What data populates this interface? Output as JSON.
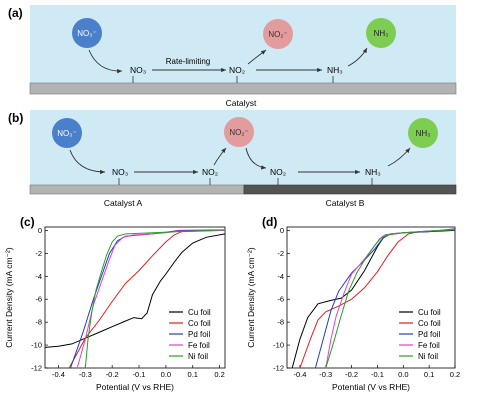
{
  "panel_a": {
    "label": "(a)",
    "nodes": {
      "nitrate": "NO₃⁻",
      "nitrite": "NO₂⁻",
      "ammonia": "NH₃"
    },
    "intermediates": {
      "no3": "NO₃",
      "no2": "NO₂",
      "nh3": "NH₃"
    },
    "step_label": "Rate-limiting",
    "catalyst_label": "Catalyst"
  },
  "panel_b": {
    "label": "(b)",
    "nodes": {
      "nitrate": "NO₃⁻",
      "nitrite": "NO₂⁻",
      "ammonia": "NH₃"
    },
    "intermediates": {
      "no3": "NO₃",
      "no2_a": "NO₂",
      "no2_b": "NO₂",
      "nh3": "NH₃"
    },
    "catalyst_a_label": "Catalyst A",
    "catalyst_b_label": "Catalyst B"
  },
  "colors": {
    "sky": "#cfe9f5",
    "nitrate": "#4a7fc9",
    "nitrite": "#e29c9e",
    "ammonia": "#7ccd52",
    "catalyst": "#b3b3b3",
    "catalyst_b": "#545454"
  },
  "chart_data": [
    {
      "type": "line",
      "panel_label": "(c)",
      "xlabel": "Potential (V vs RHE)",
      "ylabel": "Current Density (mA cm⁻²)",
      "xlim": [
        -0.45,
        0.22
      ],
      "ylim": [
        -12,
        0.3
      ],
      "xticks": [
        -0.4,
        -0.3,
        -0.2,
        -0.1,
        0.0,
        0.1,
        0.2
      ],
      "xtick_labels": [
        "-0.4",
        "-0.3",
        "-0.2",
        "-0.1",
        "0.0",
        "0.1",
        "0.2"
      ],
      "yticks": [
        0,
        -2,
        -4,
        -6,
        -8,
        -10,
        -12
      ],
      "ytick_labels": [
        "0",
        "-2",
        "-4",
        "-6",
        "-8",
        "-10",
        "-12"
      ],
      "legend_position": "bottom-right",
      "series": [
        {
          "name": "Cu foil",
          "color": "#000000",
          "points": [
            [
              -0.45,
              -10.2
            ],
            [
              -0.4,
              -10.1
            ],
            [
              -0.35,
              -9.9
            ],
            [
              -0.3,
              -9.4
            ],
            [
              -0.25,
              -8.9
            ],
            [
              -0.2,
              -8.4
            ],
            [
              -0.15,
              -7.9
            ],
            [
              -0.12,
              -7.6
            ],
            [
              -0.09,
              -7.7
            ],
            [
              -0.07,
              -7.2
            ],
            [
              -0.05,
              -5.6
            ],
            [
              -0.02,
              -4.4
            ],
            [
              0.0,
              -3.8
            ],
            [
              0.03,
              -2.8
            ],
            [
              0.06,
              -1.9
            ],
            [
              0.1,
              -1.1
            ],
            [
              0.15,
              -0.6
            ],
            [
              0.22,
              -0.3
            ]
          ]
        },
        {
          "name": "Co foil",
          "color": "#e02020",
          "points": [
            [
              -0.36,
              -12
            ],
            [
              -0.3,
              -9.4
            ],
            [
              -0.25,
              -7.9
            ],
            [
              -0.2,
              -6.2
            ],
            [
              -0.15,
              -4.6
            ],
            [
              -0.1,
              -3.5
            ],
            [
              -0.05,
              -2.2
            ],
            [
              0.0,
              -1.0
            ],
            [
              0.03,
              -0.4
            ],
            [
              0.06,
              -0.1
            ],
            [
              0.22,
              0.0
            ]
          ]
        },
        {
          "name": "Pd foil",
          "color": "#1f3fbf",
          "points": [
            [
              -0.355,
              -12
            ],
            [
              -0.31,
              -9.0
            ],
            [
              -0.27,
              -6.0
            ],
            [
              -0.24,
              -4.0
            ],
            [
              -0.21,
              -2.0
            ],
            [
              -0.18,
              -0.9
            ],
            [
              -0.15,
              -0.5
            ],
            [
              -0.1,
              -0.4
            ],
            [
              -0.05,
              -0.3
            ],
            [
              0.0,
              -0.15
            ],
            [
              0.05,
              0.0
            ],
            [
              0.22,
              0.05
            ]
          ]
        },
        {
          "name": "Fe foil",
          "color": "#e040d0",
          "points": [
            [
              -0.33,
              -12
            ],
            [
              -0.3,
              -9.5
            ],
            [
              -0.27,
              -6.5
            ],
            [
              -0.24,
              -4.5
            ],
            [
              -0.21,
              -2.5
            ],
            [
              -0.19,
              -1.3
            ],
            [
              -0.16,
              -0.6
            ],
            [
              -0.12,
              -0.4
            ],
            [
              -0.05,
              -0.3
            ],
            [
              0.0,
              -0.2
            ],
            [
              0.05,
              -0.05
            ],
            [
              0.22,
              0.0
            ]
          ]
        },
        {
          "name": "Ni foil",
          "color": "#28a028",
          "points": [
            [
              -0.3,
              -12
            ],
            [
              -0.29,
              -9.5
            ],
            [
              -0.275,
              -7.0
            ],
            [
              -0.26,
              -5.2
            ],
            [
              -0.24,
              -3.6
            ],
            [
              -0.22,
              -2.1
            ],
            [
              -0.2,
              -1.0
            ],
            [
              -0.18,
              -0.5
            ],
            [
              -0.15,
              -0.3
            ],
            [
              -0.05,
              -0.2
            ],
            [
              0.05,
              -0.1
            ],
            [
              0.22,
              0.05
            ]
          ]
        }
      ]
    },
    {
      "type": "line",
      "panel_label": "(d)",
      "xlabel": "Potential (V vs RHE)",
      "ylabel": "Current Density (mA cm⁻²)",
      "xlim": [
        -0.45,
        0.2
      ],
      "ylim": [
        -12,
        0.3
      ],
      "xticks": [
        -0.4,
        -0.3,
        -0.2,
        -0.1,
        0.0,
        0.1,
        0.2
      ],
      "xtick_labels": [
        "-0.4",
        "-0.3",
        "-0.2",
        "-0.1",
        "0.0",
        "0.1",
        "0.2"
      ],
      "yticks": [
        0,
        -2,
        -4,
        -6,
        -8,
        -10,
        -12
      ],
      "ytick_labels": [
        "0",
        "-2",
        "-4",
        "-6",
        "-8",
        "-10",
        "-12"
      ],
      "legend_position": "bottom-right",
      "series": [
        {
          "name": "Cu foil",
          "color": "#000000",
          "points": [
            [
              -0.43,
              -12
            ],
            [
              -0.4,
              -9.5
            ],
            [
              -0.37,
              -7.6
            ],
            [
              -0.33,
              -6.4
            ],
            [
              -0.28,
              -6.1
            ],
            [
              -0.24,
              -5.9
            ],
            [
              -0.2,
              -5.2
            ],
            [
              -0.15,
              -3.5
            ],
            [
              -0.1,
              -1.4
            ],
            [
              -0.07,
              -0.4
            ],
            [
              0.0,
              -0.2
            ],
            [
              0.1,
              -0.1
            ],
            [
              0.2,
              0.0
            ]
          ]
        },
        {
          "name": "Co foil",
          "color": "#e02020",
          "points": [
            [
              -0.4,
              -12
            ],
            [
              -0.36,
              -9.5
            ],
            [
              -0.33,
              -7.8
            ],
            [
              -0.3,
              -7.1
            ],
            [
              -0.25,
              -6.6
            ],
            [
              -0.2,
              -6.0
            ],
            [
              -0.15,
              -5.0
            ],
            [
              -0.1,
              -3.6
            ],
            [
              -0.06,
              -2.2
            ],
            [
              -0.02,
              -1.0
            ],
            [
              0.02,
              -0.3
            ],
            [
              0.06,
              -0.1
            ],
            [
              0.2,
              0.05
            ]
          ]
        },
        {
          "name": "Pd foil",
          "color": "#1f3fbf",
          "points": [
            [
              -0.34,
              -12
            ],
            [
              -0.31,
              -9.5
            ],
            [
              -0.28,
              -7.0
            ],
            [
              -0.25,
              -5.3
            ],
            [
              -0.2,
              -3.7
            ],
            [
              -0.15,
              -2.6
            ],
            [
              -0.11,
              -1.6
            ],
            [
              -0.08,
              -0.7
            ],
            [
              -0.05,
              -0.3
            ],
            [
              0.0,
              -0.2
            ],
            [
              0.1,
              -0.1
            ],
            [
              0.2,
              0.15
            ]
          ]
        },
        {
          "name": "Fe foil",
          "color": "#e040d0",
          "points": [
            [
              -0.3,
              -12
            ],
            [
              -0.28,
              -9.5
            ],
            [
              -0.26,
              -7.5
            ],
            [
              -0.23,
              -5.5
            ],
            [
              -0.2,
              -3.8
            ],
            [
              -0.15,
              -2.5
            ],
            [
              -0.11,
              -1.3
            ],
            [
              -0.08,
              -0.5
            ],
            [
              -0.05,
              -0.3
            ],
            [
              0.0,
              -0.2
            ],
            [
              0.1,
              -0.05
            ],
            [
              0.2,
              0.1
            ]
          ]
        },
        {
          "name": "Ni foil",
          "color": "#28a028",
          "points": [
            [
              -0.3,
              -12
            ],
            [
              -0.27,
              -9.8
            ],
            [
              -0.24,
              -7.4
            ],
            [
              -0.21,
              -5.2
            ],
            [
              -0.18,
              -3.7
            ],
            [
              -0.15,
              -2.6
            ],
            [
              -0.12,
              -1.6
            ],
            [
              -0.09,
              -0.7
            ],
            [
              -0.06,
              -0.4
            ],
            [
              0.0,
              -0.2
            ],
            [
              0.1,
              -0.05
            ],
            [
              0.2,
              0.05
            ]
          ]
        }
      ]
    }
  ]
}
